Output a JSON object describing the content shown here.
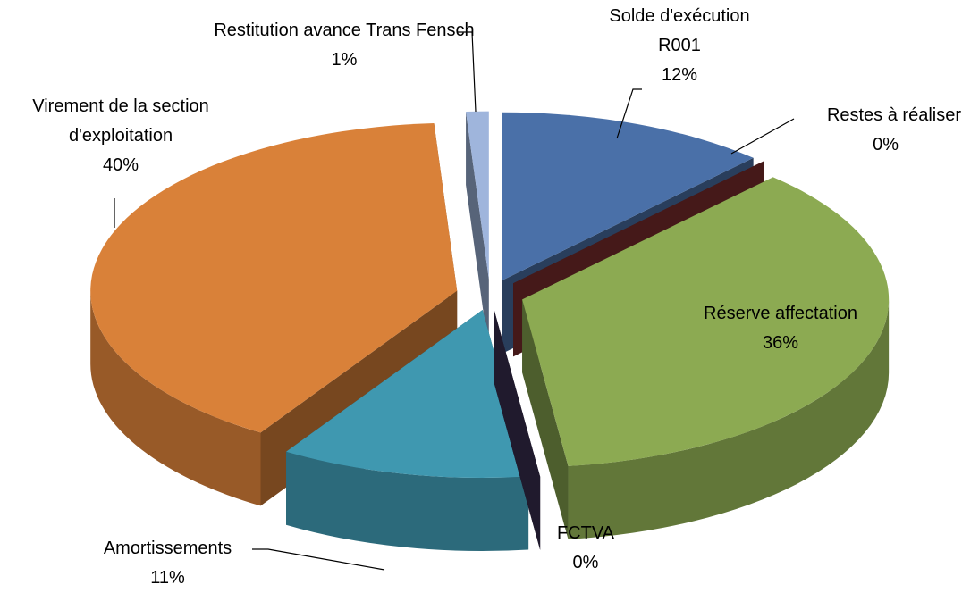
{
  "chart_data": {
    "type": "pie3d",
    "categories": [
      "Solde d'exécution R001",
      "Restes à réaliser",
      "Réserve affectation",
      "FCTVA",
      "Amortissements",
      "Virement de la section d'exploitation",
      "Restitution avance Trans Fensch"
    ],
    "values": [
      12,
      0,
      36,
      0,
      11,
      40,
      1
    ],
    "value_labels": [
      "12%",
      "0%",
      "36%",
      "0%",
      "11%",
      "40%",
      "1%"
    ],
    "colors": [
      "#4a70a8",
      "#7d2e2e",
      "#8caa52",
      "#3a2f52",
      "#3f98b0",
      "#d98139",
      "#9fb5dc"
    ]
  }
}
